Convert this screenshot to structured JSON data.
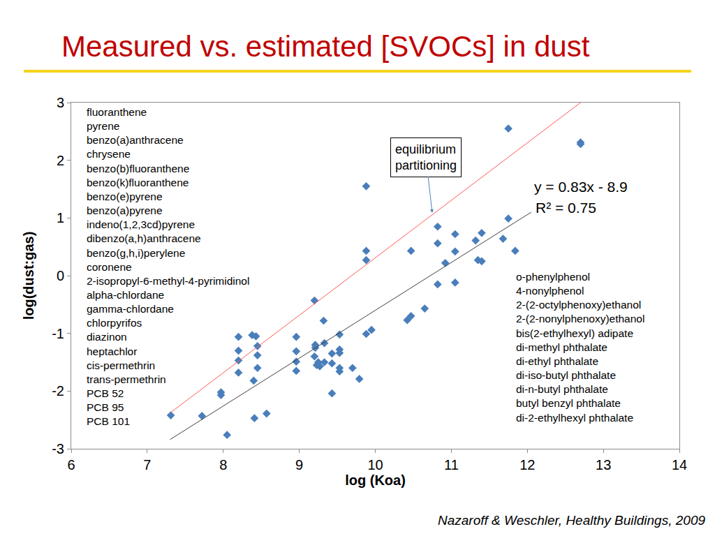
{
  "chart_data": {
    "type": "scatter",
    "title": "Measured vs. estimated [SVOCs] in dust",
    "xlabel": "log (Koa)",
    "ylabel": "log(dust:gas)",
    "xlim": [
      6,
      14
    ],
    "ylim": [
      -3,
      3
    ],
    "xticks": [
      6,
      7,
      8,
      9,
      10,
      11,
      12,
      13,
      14
    ],
    "yticks": [
      -3,
      -2,
      -1,
      0,
      1,
      2,
      3
    ],
    "grid": false,
    "series": [
      {
        "type": "scatter",
        "marker": "diamond",
        "color": "#4a7ebb",
        "x": [
          7.31,
          7.72,
          7.97,
          7.97,
          8.05,
          8.2,
          8.2,
          8.2,
          8.2,
          8.38,
          8.43,
          8.45,
          8.45,
          8.45,
          8.4,
          8.41,
          8.57,
          8.96,
          8.96,
          8.96,
          8.96,
          9.2,
          9.21,
          9.21,
          9.2,
          9.23,
          9.25,
          9.27,
          9.32,
          9.33,
          9.33,
          9.43,
          9.43,
          9.43,
          9.53,
          9.53,
          9.53,
          9.53,
          9.53,
          9.7,
          9.79,
          9.88,
          9.88,
          9.88,
          9.88,
          9.95,
          10.42,
          10.47,
          10.47,
          10.65,
          10.82,
          10.82,
          10.82,
          10.92,
          11.05,
          11.05,
          11.05,
          11.32,
          11.35,
          11.4,
          11.4,
          11.68,
          11.75,
          11.75,
          11.84,
          12.7,
          12.7
        ],
        "values": [
          -2.42,
          -2.43,
          -2.02,
          -2.07,
          -2.76,
          -1.06,
          -1.3,
          -1.47,
          -1.68,
          -1.03,
          -1.05,
          -1.22,
          -1.38,
          -1.6,
          -1.82,
          -2.47,
          -2.39,
          -1.06,
          -1.31,
          -1.49,
          -1.65,
          -0.43,
          -1.2,
          -1.25,
          -1.4,
          -1.55,
          -1.5,
          -1.57,
          -0.78,
          -1.17,
          -1.5,
          -1.35,
          -1.52,
          -2.04,
          -1.02,
          -1.28,
          -1.34,
          -1.6,
          -1.66,
          -1.6,
          -1.79,
          1.55,
          0.43,
          0.27,
          -1.01,
          -0.94,
          -0.77,
          -0.7,
          0.43,
          -0.57,
          0.85,
          0.56,
          -0.15,
          0.22,
          0.72,
          0.42,
          -0.12,
          0.61,
          0.27,
          0.74,
          0.25,
          0.64,
          0.99,
          2.55,
          0.43,
          2.31,
          2.28
        ]
      },
      {
        "type": "line",
        "color": "#ff5a5a",
        "x": [
          7.31,
          12.7
        ],
        "values": [
          -2.37,
          3.0
        ]
      },
      {
        "type": "line",
        "color": "#404040",
        "x": [
          7.3,
          12.05
        ],
        "values": [
          -2.84,
          1.1
        ]
      }
    ],
    "compounds_left": [
      "fluoranthene",
      "pyrene",
      "benzo(a)anthracene",
      "chrysene",
      "benzo(b)fluoranthene",
      "benzo(k)fluoranthene",
      "benzo(e)pyrene",
      "benzo(a)pyrene",
      "indeno(1,2,3cd)pyrene",
      "dibenzo(a,h)anthracene",
      "benzo(g,h,i)perylene",
      "coronene",
      "2-isopropyl-6-methyl-4-pyrimidinol",
      "alpha-chlordane",
      "gamma-chlordane",
      "chlorpyrifos",
      "diazinon",
      "heptachlor",
      "cis-permethrin",
      "trans-permethrin",
      "PCB 52",
      "PCB 95",
      "PCB 101"
    ],
    "compounds_right": [
      "o-phenylphenol",
      "4-nonylphenol",
      "2-(2-octylphenoxy)ethanol",
      "2-(2-nonylphenoxy)ethanol",
      "bis(2-ethylhexyl) adipate",
      "di-methyl phthalate",
      "di-ethyl phthalate",
      "di-iso-butyl phthalate",
      "di-n-butyl phthalate",
      "butyl benzyl phthalate",
      "di-2-ethylhexyl phthalate"
    ],
    "line_label": "equilibrium partitioning",
    "equation": "y = 0.83x - 8.9",
    "r_squared": "R² = 0.75",
    "source": "Nazaroff & Weschler, Healthy Buildings, 2009"
  }
}
